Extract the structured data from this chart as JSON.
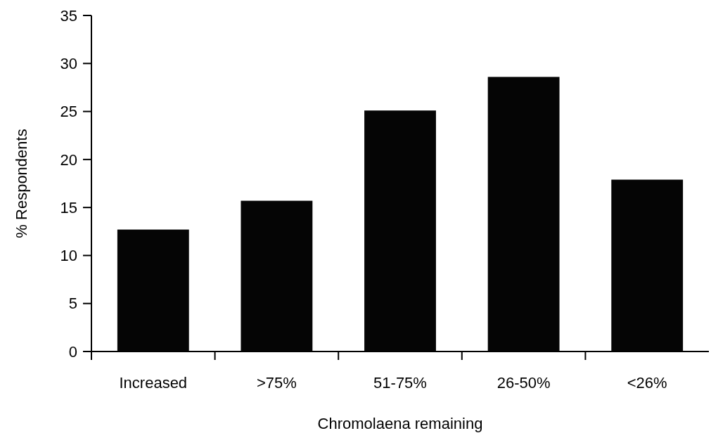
{
  "chart_data": {
    "type": "bar",
    "xlabel": "Chromolaena remaining",
    "ylabel": "% Respondents",
    "categories": [
      "Increased",
      ">75%",
      "51-75%",
      "26-50%",
      "<26%"
    ],
    "values": [
      12.7,
      15.7,
      25.1,
      28.6,
      17.9
    ],
    "color": "#050505",
    "ylim": [
      0,
      35
    ],
    "yticks": [
      0,
      5,
      10,
      15,
      20,
      25,
      30,
      35
    ],
    "grid": false
  }
}
